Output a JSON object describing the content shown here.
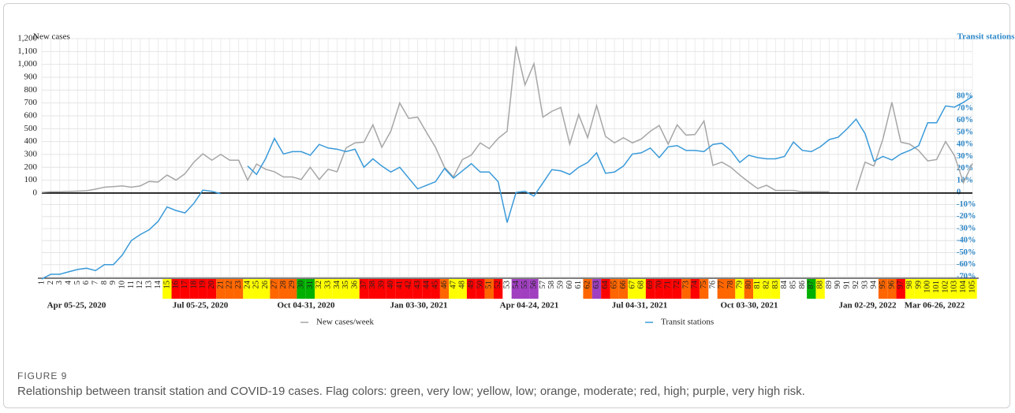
{
  "chart_data": {
    "type": "line",
    "ylabel": "New cases",
    "y2label": "Transit stations",
    "categories": [
      "1",
      "2",
      "3",
      "4",
      "5",
      "6",
      "7",
      "8",
      "9",
      "10",
      "11",
      "12",
      "13",
      "14",
      "15",
      "16",
      "17",
      "18",
      "19",
      "20",
      "21",
      "22",
      "23",
      "24",
      "25",
      "26",
      "27",
      "28",
      "29",
      "30",
      "31",
      "32",
      "33",
      "34",
      "35",
      "36",
      "37",
      "38",
      "39",
      "40",
      "41",
      "42",
      "43",
      "44",
      "45",
      "46",
      "47",
      "48",
      "49",
      "50",
      "51",
      "52",
      "53",
      "54",
      "55",
      "56",
      "57",
      "58",
      "59",
      "60",
      "61",
      "62",
      "63",
      "64",
      "65",
      "66",
      "67",
      "68",
      "69",
      "70",
      "71",
      "72",
      "73",
      "74",
      "75",
      "76",
      "77",
      "78",
      "79",
      "80",
      "81",
      "82",
      "83",
      "84",
      "85",
      "86",
      "87",
      "88",
      "89",
      "90",
      "91",
      "92",
      "93",
      "94",
      "95",
      "96",
      "97",
      "98",
      "99",
      "100",
      "101",
      "102",
      "103",
      "104",
      "105"
    ],
    "flags": [
      null,
      null,
      null,
      null,
      null,
      null,
      null,
      null,
      null,
      null,
      null,
      null,
      null,
      null,
      "#ffff00",
      "#ff0000",
      "#ff0000",
      "#ff0000",
      "#ff0000",
      "#ff0000",
      "#ff6600",
      "#ff6600",
      "#ff6600",
      "#ffff00",
      "#ffff00",
      "#ffff00",
      "#ff6600",
      "#ff6600",
      "#ff6600",
      "#00b000",
      "#00b000",
      "#ffff00",
      "#ffff00",
      "#ffff00",
      "#ffff00",
      "#ffff00",
      "#ff0000",
      "#ff0000",
      "#ff0000",
      "#ff0000",
      "#ff0000",
      "#ff0000",
      "#ff0000",
      "#ff0000",
      "#ff0000",
      "#ff6600",
      "#ffff00",
      "#ffff00",
      "#ff0000",
      "#ff0000",
      "#ff6600",
      "#ff0000",
      null,
      "#a040c0",
      "#a040c0",
      "#a040c0",
      null,
      null,
      null,
      null,
      null,
      "#ff6600",
      "#a040c0",
      "#ff0000",
      "#ff6600",
      "#ff6600",
      "#ffff00",
      "#ffff00",
      "#ff0000",
      "#ff0000",
      "#ff0000",
      "#ff0000",
      "#ff6600",
      "#ff0000",
      "#ff6600",
      null,
      "#ff6600",
      "#ff6600",
      "#ffff00",
      "#ff6600",
      "#ffff00",
      "#ffff00",
      "#ffff00",
      null,
      null,
      null,
      "#00b000",
      "#ffff00",
      null,
      null,
      null,
      null,
      null,
      null,
      "#ff6600",
      "#ff6600",
      "#ff0000",
      "#ffff00",
      "#ffff00",
      "#ffff00",
      "#ffff00",
      "#ffff00",
      "#ffff00",
      "#ffff00",
      "#ffff00"
    ],
    "period_labels": [
      "Apr 05-25, 2020",
      "Jul 05-25, 2020",
      "Oct 04-31, 2020",
      "Jan 03-30, 2021",
      "Apr 04-24, 2021",
      "Jul 04-31, 2021",
      "Oct 03-30, 2021",
      "Jan 02-29, 2022",
      "Mar 06-26, 2022"
    ],
    "series": [
      {
        "name": "New cases/week",
        "color": "#a6a6a6",
        "values": [
          5,
          10,
          10,
          12,
          15,
          18,
          30,
          45,
          50,
          55,
          45,
          55,
          90,
          85,
          140,
          100,
          150,
          240,
          305,
          255,
          300,
          255,
          255,
          100,
          225,
          185,
          165,
          125,
          125,
          105,
          200,
          105,
          185,
          165,
          350,
          390,
          395,
          530,
          355,
          480,
          700,
          580,
          590,
          470,
          355,
          200,
          125,
          260,
          295,
          390,
          345,
          425,
          480,
          1140,
          840,
          1005,
          590,
          635,
          665,
          380,
          610,
          430,
          680,
          440,
          390,
          430,
          390,
          420,
          480,
          525,
          380,
          530,
          450,
          455,
          560,
          215,
          240,
          200,
          140,
          85,
          35,
          60,
          20,
          20,
          20,
          10,
          10,
          10,
          10,
          null,
          null,
          20,
          240,
          210,
          420,
          705,
          395,
          380,
          330,
          250,
          260,
          400,
          290,
          80,
          230
        ]
      },
      {
        "name": "Transit stations",
        "color": "#3a9ad9",
        "axis": "y2",
        "values": [
          -72,
          -68,
          -68,
          -66,
          -64,
          -63,
          -65,
          -60,
          -60,
          -52,
          -40,
          -35,
          -31,
          -24,
          -12,
          -15,
          -17,
          -9,
          2,
          1,
          -1,
          null,
          null,
          22,
          15,
          28,
          45,
          32,
          34,
          34,
          31,
          40,
          37,
          36,
          34,
          36,
          21,
          28,
          22,
          17,
          21,
          12,
          3,
          6,
          9,
          20,
          12,
          18,
          24,
          17,
          17,
          9,
          -25,
          0,
          1,
          -3,
          8,
          19,
          18,
          15,
          21,
          25,
          33,
          16,
          17,
          22,
          32,
          33,
          37,
          29,
          38,
          39,
          35,
          35,
          34,
          40,
          41,
          35,
          25,
          31,
          29,
          28,
          28,
          30,
          42,
          35,
          34,
          38,
          44,
          46,
          53,
          61,
          49,
          26,
          30,
          27,
          32,
          35,
          39,
          58,
          58,
          72,
          71,
          75,
          80
        ]
      }
    ],
    "ylim": [
      -650,
      1200
    ],
    "yticks": [
      0,
      100,
      200,
      300,
      400,
      500,
      600,
      700,
      800,
      900,
      {
        "value": 1000,
        "label": "1,000"
      },
      {
        "value": 1100,
        "label": "1,100"
      },
      {
        "value": 1200,
        "label": "1,200"
      }
    ],
    "y2lim": [
      -70,
      128
    ],
    "y2ticks": [
      {
        "value": -70,
        "label": "-70%"
      },
      {
        "value": -60,
        "label": "-60%"
      },
      {
        "value": -50,
        "label": "-50%"
      },
      {
        "value": -40,
        "label": "-40%"
      },
      {
        "value": -30,
        "label": "-30%"
      },
      {
        "value": -20,
        "label": "-20%"
      },
      {
        "value": -10,
        "label": "-10%"
      },
      {
        "value": 0,
        "label": "0"
      },
      {
        "value": 10,
        "label": "10%"
      },
      {
        "value": 20,
        "label": "20%"
      },
      {
        "value": 30,
        "label": "30%"
      },
      {
        "value": 40,
        "label": "40%"
      },
      {
        "value": 50,
        "label": "50%"
      },
      {
        "value": 60,
        "label": "60%"
      },
      {
        "value": 70,
        "label": "70%"
      },
      {
        "value": 80,
        "label": "80%"
      }
    ],
    "grid": true
  },
  "figure_label": "FIGURE 9",
  "caption": "Relationship between transit station and COVID-19 cases. Flag colors: green, very low; yellow, low; orange, moderate; red, high; purple, very high risk."
}
